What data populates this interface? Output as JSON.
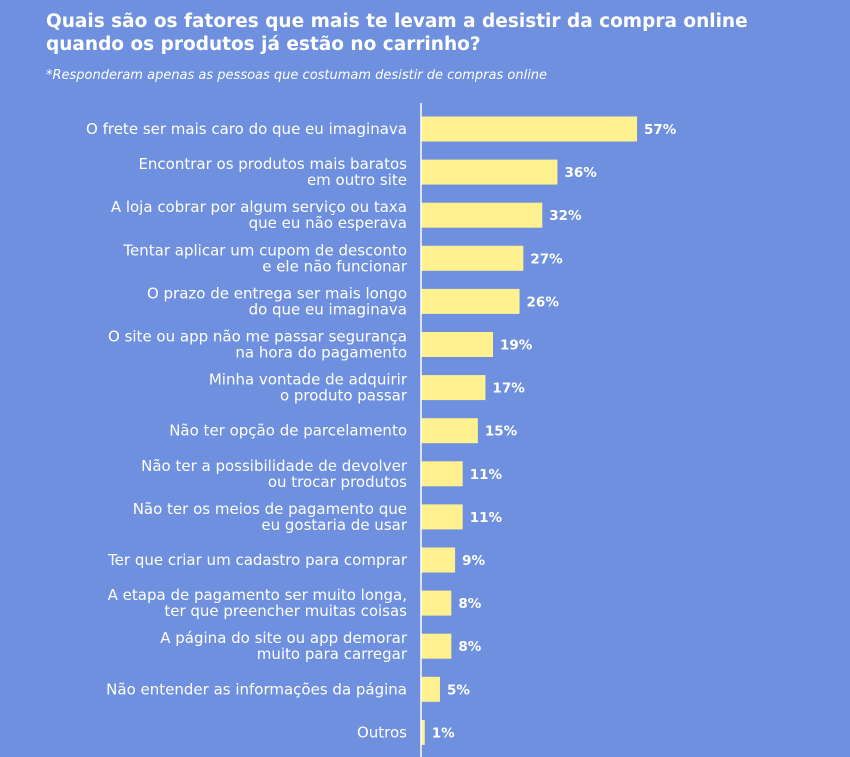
{
  "title": "Quais são os fatores que mais te levam a desistir da compra online quando os produtos já estão no carrinho?",
  "subtitle": "*Responderam apenas as pessoas que costumam desistir de compras online",
  "colors": {
    "background": "#6f90de",
    "bar": "#fff18f",
    "axis": "#ffffff",
    "text": "#ffffff"
  },
  "chart_data": {
    "type": "bar",
    "orientation": "horizontal",
    "categories": [
      "O frete ser mais caro do que eu imaginava",
      "Encontrar os produtos mais baratos em outro site",
      "A loja cobrar por algum serviço ou taxa que eu não esperava",
      "Tentar aplicar um cupom de desconto e ele não funcionar",
      "O prazo de entrega ser mais longo do que eu imaginava",
      "O site ou app não me passar segurança na hora do pagamento",
      "Minha vontade de adquirir o produto passar",
      "Não ter opção de parcelamento",
      "Não ter a possibilidade de devolver ou trocar produtos",
      "Não ter os meios de pagamento que eu gostaria de usar",
      "Ter que criar um cadastro para comprar",
      "A etapa de pagamento ser muito longa, ter que preencher muitas coisas",
      "A página do site ou app demorar muito para carregar",
      "Não entender as informações da página",
      "Outros"
    ],
    "label_lines": [
      [
        "O frete ser mais caro do que eu imaginava"
      ],
      [
        "Encontrar os produtos mais baratos",
        "em outro site"
      ],
      [
        "A loja cobrar por algum serviço ou taxa",
        "que eu não esperava"
      ],
      [
        "Tentar aplicar um cupom de desconto",
        "e ele não funcionar"
      ],
      [
        "O prazo de entrega ser mais longo",
        "do que eu imaginava"
      ],
      [
        "O site ou app não me passar segurança",
        "na hora do pagamento"
      ],
      [
        "Minha vontade de adquirir",
        "o produto passar"
      ],
      [
        "Não ter opção de parcelamento"
      ],
      [
        "Não ter a possibilidade de devolver",
        "ou trocar produtos"
      ],
      [
        "Não ter os meios de pagamento que",
        "eu gostaria de usar"
      ],
      [
        "Ter que criar um cadastro para comprar"
      ],
      [
        "A etapa de pagamento ser muito longa,",
        "ter que preencher muitas coisas"
      ],
      [
        "A página do site ou app demorar",
        "muito para carregar"
      ],
      [
        "Não entender as informações da página"
      ],
      [
        "Outros"
      ]
    ],
    "values": [
      57,
      36,
      32,
      27,
      26,
      19,
      17,
      15,
      11,
      11,
      9,
      8,
      8,
      5,
      1
    ],
    "value_labels": [
      "57%",
      "36%",
      "32%",
      "27%",
      "26%",
      "19%",
      "17%",
      "15%",
      "11%",
      "11%",
      "9%",
      "8%",
      "8%",
      "5%",
      "1%"
    ],
    "unit": "%",
    "xlim": [
      0,
      100
    ],
    "grid": false,
    "legend": "none"
  }
}
